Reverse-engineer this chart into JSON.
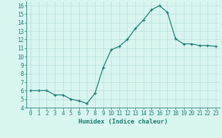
{
  "x": [
    0,
    1,
    2,
    3,
    4,
    5,
    6,
    7,
    8,
    9,
    10,
    11,
    12,
    13,
    14,
    15,
    16,
    17,
    18,
    19,
    20,
    21,
    22,
    23
  ],
  "y": [
    6.0,
    6.0,
    6.0,
    5.5,
    5.5,
    5.0,
    4.8,
    4.5,
    5.7,
    8.7,
    10.8,
    11.2,
    12.0,
    13.3,
    14.3,
    15.5,
    16.0,
    15.2,
    12.1,
    11.5,
    11.5,
    11.3,
    11.3,
    11.2
  ],
  "line_color": "#1a7a6e",
  "marker": "+",
  "bg_color": "#d8f5f0",
  "grid_color": "#b8ddd8",
  "xlabel": "Humidex (Indice chaleur)",
  "ylim": [
    4,
    16.5
  ],
  "xlim": [
    -0.5,
    23.5
  ],
  "yticks": [
    4,
    5,
    6,
    7,
    8,
    9,
    10,
    11,
    12,
    13,
    14,
    15,
    16
  ],
  "xticks": [
    0,
    1,
    2,
    3,
    4,
    5,
    6,
    7,
    8,
    9,
    10,
    11,
    12,
    13,
    14,
    15,
    16,
    17,
    18,
    19,
    20,
    21,
    22,
    23
  ],
  "tick_fontsize": 5.5,
  "label_fontsize": 6.5
}
